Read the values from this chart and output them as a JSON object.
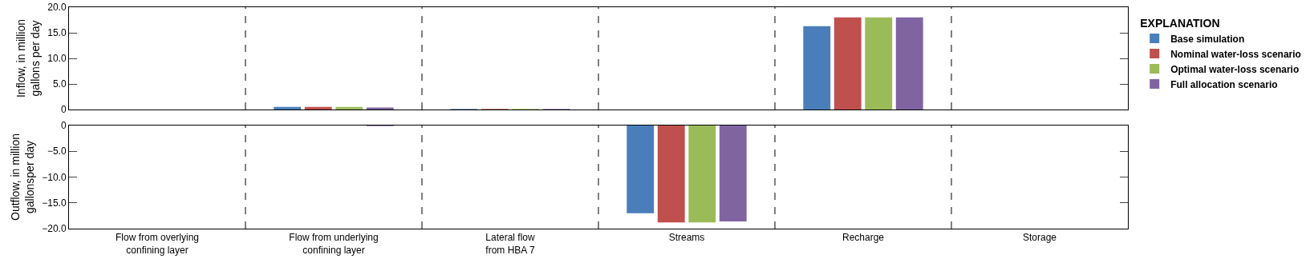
{
  "chart_data": [
    {
      "type": "bar",
      "ylabel": "Inflow, in million\ngallons per day",
      "legend_title": "EXPLANATION",
      "legend": "right",
      "tick_labels": "y",
      "grid": false,
      "categories": [
        null,
        null,
        null,
        null,
        null,
        null
      ],
      "ylim": [
        0,
        20
      ],
      "yticks": [
        0,
        {
          "value": 5,
          "label": "5.0"
        },
        {
          "value": 10,
          "label": "10.0"
        },
        {
          "value": 15,
          "label": "15.0"
        },
        {
          "value": 20,
          "label": "20.0"
        }
      ],
      "series": [
        {
          "name": "Base simulation",
          "color": "#4a7ebb",
          "values": [
            0,
            0.5,
            0.1,
            0,
            16.3,
            0
          ]
        },
        {
          "name": "Nominal water-loss scenario",
          "color": "#c0504d",
          "values": [
            0,
            0.5,
            0.1,
            0,
            18.0,
            0
          ]
        },
        {
          "name": "Optimal water-loss scenario",
          "color": "#9bbb59",
          "values": [
            0,
            0.5,
            0.1,
            0,
            18.0,
            0
          ]
        },
        {
          "name": "Full allocation scenario",
          "color": "#8064a2",
          "values": [
            0,
            0.4,
            0.1,
            0,
            18.0,
            0
          ]
        }
      ]
    },
    {
      "type": "bar",
      "ylabel": "Outflow, in million\ngallonsper day",
      "grid": false,
      "categories": [
        "Flow from overlying\nconfining layer",
        "Flow from underlying\nconfining layer",
        "Lateral flow\nfrom HBA 7",
        "Streams",
        "Recharge",
        "Storage"
      ],
      "ylim": [
        -20,
        0
      ],
      "yticks": [
        {
          "value": -20,
          "label": "−20.0"
        },
        {
          "value": -15,
          "label": "−15.0"
        },
        {
          "value": -10,
          "label": "−10.0"
        },
        {
          "value": -5,
          "label": "−5.0"
        },
        0
      ],
      "series": [
        {
          "color": "#4a7ebb",
          "values": [
            0,
            0,
            0,
            -17.0,
            0,
            0
          ]
        },
        {
          "color": "#c0504d",
          "values": [
            0,
            0,
            0,
            -18.8,
            0,
            0
          ]
        },
        {
          "color": "#9bbb59",
          "values": [
            0,
            0,
            0,
            -18.8,
            0,
            0
          ]
        },
        {
          "color": "#8064a2",
          "values": [
            0,
            -0.1,
            0,
            -18.6,
            0,
            0
          ]
        }
      ]
    }
  ]
}
